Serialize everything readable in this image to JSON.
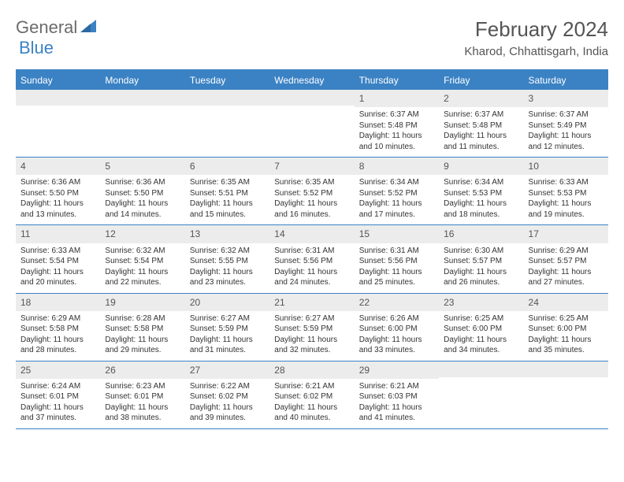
{
  "brand": {
    "text1": "General",
    "text2": "Blue"
  },
  "title": "February 2024",
  "location": "Kharod, Chhattisgarh, India",
  "colors": {
    "accent": "#3b82c4",
    "header_text": "#ffffff",
    "daybar_bg": "#ececec",
    "body_text": "#333333",
    "title_text": "#555555"
  },
  "day_headers": [
    "Sunday",
    "Monday",
    "Tuesday",
    "Wednesday",
    "Thursday",
    "Friday",
    "Saturday"
  ],
  "first_weekday_index": 4,
  "days": [
    {
      "n": 1,
      "sunrise": "6:37 AM",
      "sunset": "5:48 PM",
      "daylight": "11 hours and 10 minutes."
    },
    {
      "n": 2,
      "sunrise": "6:37 AM",
      "sunset": "5:48 PM",
      "daylight": "11 hours and 11 minutes."
    },
    {
      "n": 3,
      "sunrise": "6:37 AM",
      "sunset": "5:49 PM",
      "daylight": "11 hours and 12 minutes."
    },
    {
      "n": 4,
      "sunrise": "6:36 AM",
      "sunset": "5:50 PM",
      "daylight": "11 hours and 13 minutes."
    },
    {
      "n": 5,
      "sunrise": "6:36 AM",
      "sunset": "5:50 PM",
      "daylight": "11 hours and 14 minutes."
    },
    {
      "n": 6,
      "sunrise": "6:35 AM",
      "sunset": "5:51 PM",
      "daylight": "11 hours and 15 minutes."
    },
    {
      "n": 7,
      "sunrise": "6:35 AM",
      "sunset": "5:52 PM",
      "daylight": "11 hours and 16 minutes."
    },
    {
      "n": 8,
      "sunrise": "6:34 AM",
      "sunset": "5:52 PM",
      "daylight": "11 hours and 17 minutes."
    },
    {
      "n": 9,
      "sunrise": "6:34 AM",
      "sunset": "5:53 PM",
      "daylight": "11 hours and 18 minutes."
    },
    {
      "n": 10,
      "sunrise": "6:33 AM",
      "sunset": "5:53 PM",
      "daylight": "11 hours and 19 minutes."
    },
    {
      "n": 11,
      "sunrise": "6:33 AM",
      "sunset": "5:54 PM",
      "daylight": "11 hours and 20 minutes."
    },
    {
      "n": 12,
      "sunrise": "6:32 AM",
      "sunset": "5:54 PM",
      "daylight": "11 hours and 22 minutes."
    },
    {
      "n": 13,
      "sunrise": "6:32 AM",
      "sunset": "5:55 PM",
      "daylight": "11 hours and 23 minutes."
    },
    {
      "n": 14,
      "sunrise": "6:31 AM",
      "sunset": "5:56 PM",
      "daylight": "11 hours and 24 minutes."
    },
    {
      "n": 15,
      "sunrise": "6:31 AM",
      "sunset": "5:56 PM",
      "daylight": "11 hours and 25 minutes."
    },
    {
      "n": 16,
      "sunrise": "6:30 AM",
      "sunset": "5:57 PM",
      "daylight": "11 hours and 26 minutes."
    },
    {
      "n": 17,
      "sunrise": "6:29 AM",
      "sunset": "5:57 PM",
      "daylight": "11 hours and 27 minutes."
    },
    {
      "n": 18,
      "sunrise": "6:29 AM",
      "sunset": "5:58 PM",
      "daylight": "11 hours and 28 minutes."
    },
    {
      "n": 19,
      "sunrise": "6:28 AM",
      "sunset": "5:58 PM",
      "daylight": "11 hours and 29 minutes."
    },
    {
      "n": 20,
      "sunrise": "6:27 AM",
      "sunset": "5:59 PM",
      "daylight": "11 hours and 31 minutes."
    },
    {
      "n": 21,
      "sunrise": "6:27 AM",
      "sunset": "5:59 PM",
      "daylight": "11 hours and 32 minutes."
    },
    {
      "n": 22,
      "sunrise": "6:26 AM",
      "sunset": "6:00 PM",
      "daylight": "11 hours and 33 minutes."
    },
    {
      "n": 23,
      "sunrise": "6:25 AM",
      "sunset": "6:00 PM",
      "daylight": "11 hours and 34 minutes."
    },
    {
      "n": 24,
      "sunrise": "6:25 AM",
      "sunset": "6:00 PM",
      "daylight": "11 hours and 35 minutes."
    },
    {
      "n": 25,
      "sunrise": "6:24 AM",
      "sunset": "6:01 PM",
      "daylight": "11 hours and 37 minutes."
    },
    {
      "n": 26,
      "sunrise": "6:23 AM",
      "sunset": "6:01 PM",
      "daylight": "11 hours and 38 minutes."
    },
    {
      "n": 27,
      "sunrise": "6:22 AM",
      "sunset": "6:02 PM",
      "daylight": "11 hours and 39 minutes."
    },
    {
      "n": 28,
      "sunrise": "6:21 AM",
      "sunset": "6:02 PM",
      "daylight": "11 hours and 40 minutes."
    },
    {
      "n": 29,
      "sunrise": "6:21 AM",
      "sunset": "6:03 PM",
      "daylight": "11 hours and 41 minutes."
    }
  ],
  "labels": {
    "sunrise": "Sunrise:",
    "sunset": "Sunset:",
    "daylight": "Daylight:"
  }
}
